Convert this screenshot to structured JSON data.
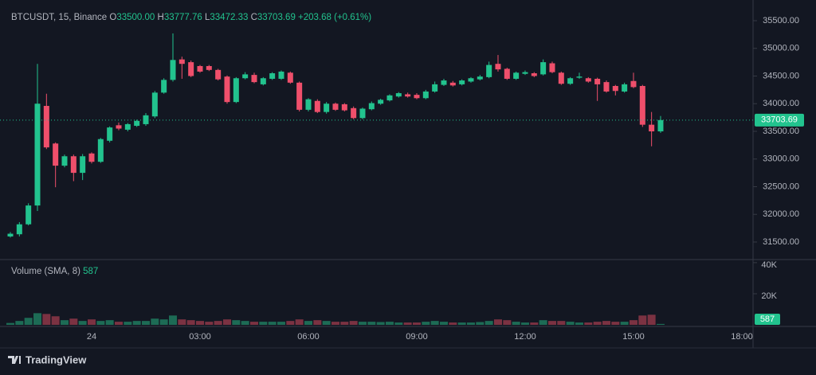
{
  "header": {
    "symbol": "BTCUSDT, 15, Binance",
    "open_label": "O",
    "open": "33500.00",
    "high_label": "H",
    "high": "33777.76",
    "low_label": "L",
    "low": "33472.33",
    "close_label": "C",
    "close": "33703.69",
    "change": "+203.68 (+0.61%)",
    "volume_title": "Volume (SMA, 8)",
    "brand": "TradingView"
  },
  "chart_data": {
    "type": "candlestick",
    "categories": [
      null,
      null,
      null,
      null,
      null,
      null,
      null,
      null,
      null,
      "24",
      null,
      null,
      null,
      null,
      null,
      null,
      null,
      null,
      null,
      null,
      null,
      "03:00",
      null,
      null,
      null,
      null,
      null,
      null,
      null,
      null,
      null,
      null,
      null,
      "06:00",
      null,
      null,
      null,
      null,
      null,
      null,
      null,
      null,
      null,
      null,
      null,
      "09:00",
      null,
      null,
      null,
      null,
      null,
      null,
      null,
      null,
      null,
      null,
      null,
      "12:00",
      null,
      null,
      null,
      null,
      null,
      null,
      null,
      null,
      null,
      null,
      null,
      "15:00",
      null,
      null,
      null,
      null,
      null,
      null,
      null,
      null,
      null,
      null,
      null,
      "18:00"
    ],
    "open": [
      31600,
      31640,
      31820,
      32160,
      33960,
      33280,
      32880,
      33050,
      32750,
      33100,
      32950,
      33330,
      33610,
      33530,
      33600,
      33630,
      33770,
      34200,
      34430,
      34800,
      34750,
      34680,
      34680,
      34610,
      34490,
      34030,
      34460,
      34520,
      34350,
      34450,
      34450,
      34560,
      34380,
      33890,
      34050,
      33850,
      34000,
      33990,
      33920,
      33740,
      33900,
      34000,
      34060,
      34130,
      34170,
      34160,
      34100,
      34220,
      34340,
      34380,
      34350,
      34400,
      34440,
      34480,
      34720,
      34630,
      34450,
      34540,
      34550,
      34530,
      34730,
      34560,
      34360,
      34470,
      34460,
      34450,
      34390,
      34320,
      34220,
      34410,
      34320,
      33620,
      33500,
      null,
      null,
      null,
      null,
      null,
      null,
      null,
      null,
      null
    ],
    "high": [
      31680,
      31860,
      32200,
      34720,
      34180,
      33300,
      33080,
      33080,
      33090,
      33120,
      33380,
      33590,
      33660,
      33650,
      33710,
      33830,
      34230,
      34460,
      35270,
      34850,
      34780,
      34700,
      34700,
      34630,
      34510,
      34480,
      34570,
      34560,
      34480,
      34570,
      34600,
      34580,
      34400,
      34100,
      34080,
      34030,
      34020,
      34010,
      33950,
      33930,
      34040,
      34090,
      34170,
      34210,
      34200,
      34190,
      34250,
      34400,
      34450,
      34410,
      34440,
      34480,
      34520,
      34760,
      34880,
      34650,
      34580,
      34600,
      34570,
      34800,
      34760,
      34580,
      34480,
      34560,
      34480,
      34470,
      34420,
      34340,
      34380,
      34560,
      34340,
      33850,
      33777.76,
      null,
      null,
      null,
      null,
      null,
      null,
      null,
      null,
      null
    ],
    "low": [
      31580,
      31600,
      31800,
      32060,
      33180,
      32490,
      32850,
      32600,
      32620,
      32920,
      32930,
      33300,
      33520,
      33500,
      33580,
      33600,
      33740,
      34180,
      34400,
      34450,
      34480,
      34560,
      34590,
      34420,
      34000,
      34010,
      34440,
      34370,
      34330,
      34430,
      34430,
      34360,
      33860,
      33860,
      33830,
      33820,
      33870,
      33860,
      33720,
      33720,
      33880,
      33980,
      34040,
      34110,
      34110,
      34080,
      34080,
      34200,
      34320,
      34310,
      34330,
      34380,
      34420,
      34460,
      34580,
      34430,
      34430,
      34520,
      34480,
      34510,
      34550,
      34340,
      34340,
      34450,
      34380,
      34050,
      34200,
      34150,
      34200,
      34280,
      33580,
      33230,
      33472.33,
      null,
      null,
      null,
      null,
      null,
      null,
      null,
      null,
      null
    ],
    "close": [
      31650,
      31820,
      32160,
      34000,
      33210,
      32880,
      33050,
      32750,
      33050,
      32950,
      33360,
      33570,
      33550,
      33630,
      33690,
      33790,
      34200,
      34430,
      34790,
      34720,
      34500,
      34580,
      34610,
      34440,
      34030,
      34460,
      34530,
      34390,
      34460,
      34550,
      34580,
      34380,
      33890,
      34080,
      33850,
      34000,
      33890,
      33880,
      33740,
      33910,
      34010,
      34070,
      34150,
      34190,
      34130,
      34100,
      34220,
      34350,
      34420,
      34330,
      34420,
      34460,
      34490,
      34700,
      34620,
      34450,
      34560,
      34570,
      34500,
      34750,
      34570,
      34360,
      34460,
      34490,
      34400,
      34350,
      34220,
      34230,
      34350,
      34300,
      33620,
      33500,
      33703.69,
      null,
      null,
      null,
      null,
      null,
      null,
      null,
      null,
      null
    ],
    "volume": [
      1200,
      2500,
      4500,
      7500,
      7000,
      5500,
      3000,
      4000,
      2500,
      3500,
      2500,
      3000,
      2000,
      2000,
      2500,
      2500,
      4000,
      3500,
      6000,
      3500,
      3000,
      2500,
      2000,
      2500,
      3500,
      3000,
      2500,
      2000,
      2000,
      2000,
      2000,
      2500,
      3500,
      2500,
      3000,
      2500,
      2000,
      2000,
      2500,
      2000,
      2000,
      1800,
      2000,
      1500,
      1500,
      1500,
      2000,
      2500,
      2000,
      1500,
      1500,
      1500,
      1800,
      2500,
      3500,
      3000,
      2000,
      1500,
      1500,
      3000,
      2500,
      2500,
      2000,
      1500,
      1500,
      2000,
      2500,
      2000,
      2000,
      3000,
      6000,
      6500,
      587,
      null,
      null,
      null,
      null,
      null,
      null,
      null,
      null,
      null
    ],
    "up_color": "#22c38e",
    "down_color": "#ef4f6b",
    "volume_up_color": "#1d6b55",
    "volume_down_color": "#7b3242",
    "ylim": [
      31183,
      35874
    ],
    "yticks": [
      {
        "value": 31500,
        "label": "31500.00"
      },
      {
        "value": 32000,
        "label": "32000.00"
      },
      {
        "value": 32500,
        "label": "32500.00"
      },
      {
        "value": 33000,
        "label": "33000.00"
      },
      {
        "value": 33500,
        "label": "33500.00"
      },
      {
        "value": 34000,
        "label": "34000.00"
      },
      {
        "value": 34500,
        "label": "34500.00"
      },
      {
        "value": 35000,
        "label": "35000.00"
      },
      {
        "value": 35500,
        "label": "35500.00"
      }
    ],
    "volume_ylim": [
      0,
      42000
    ],
    "volume_ticks": [
      {
        "value": 20000,
        "label": "20K"
      },
      {
        "value": 40000,
        "label": "40K"
      }
    ]
  }
}
